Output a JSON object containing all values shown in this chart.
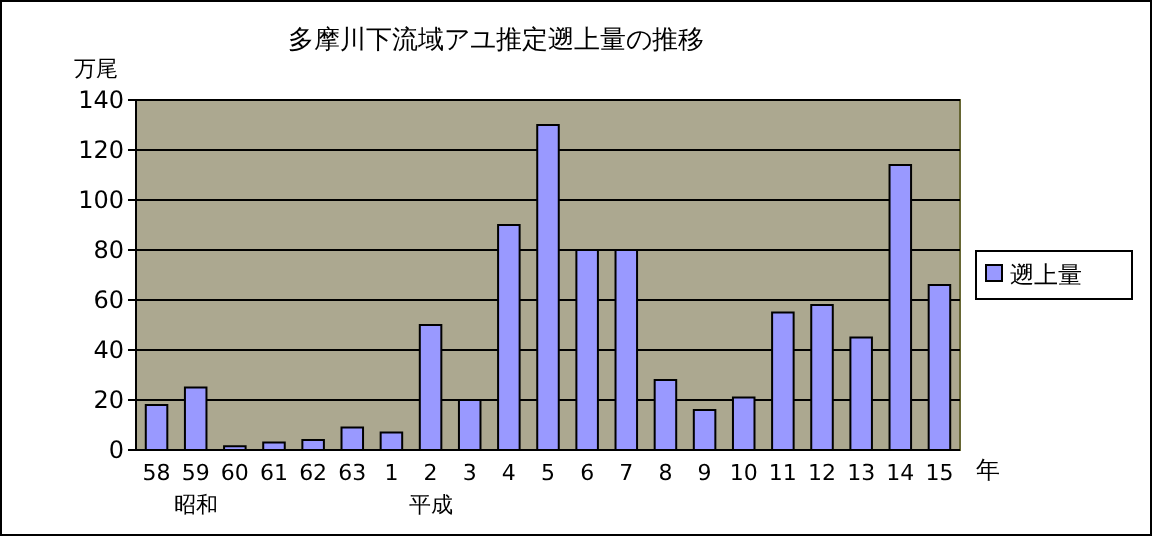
{
  "chart_data": {
    "type": "bar",
    "title": "多摩川下流域アユ推定遡上量の推移",
    "ylabel": "万尾",
    "xlabel": "年",
    "categories": [
      "58",
      "59\n昭和",
      "60",
      "61",
      "62",
      "63",
      "1",
      "2\n平成",
      "3",
      "4",
      "5",
      "6",
      "7",
      "8",
      "9",
      "10",
      "11",
      "12",
      "13",
      "14",
      "15"
    ],
    "series": [
      {
        "name": "遡上量",
        "color": "#9999ff",
        "values": [
          18,
          25,
          1.5,
          3,
          4,
          9,
          7,
          50,
          20,
          90,
          130,
          80,
          80,
          28,
          16,
          21,
          55,
          58,
          45,
          114,
          66
        ]
      }
    ],
    "ylim": [
      0,
      140
    ],
    "yticks": [
      0,
      20,
      40,
      60,
      80,
      100,
      120,
      140
    ],
    "grid": "y",
    "legend": "right"
  }
}
